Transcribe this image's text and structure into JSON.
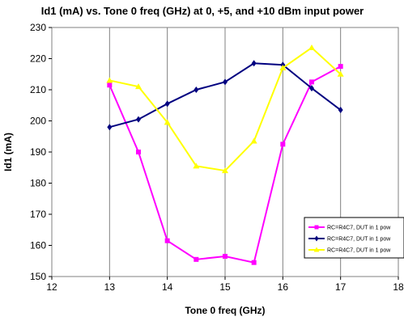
{
  "chart_data": {
    "type": "line",
    "title": "Id1 (mA) vs. Tone 0 freq (GHz) at 0, +5, and +10 dBm input power",
    "xlabel": "Tone 0 freq (GHz)",
    "ylabel": "Id1 (mA)",
    "xlim": [
      12,
      18
    ],
    "ylim": [
      150,
      230
    ],
    "xticks": [
      12,
      13,
      14,
      15,
      16,
      17,
      18
    ],
    "yticks": [
      150,
      160,
      170,
      180,
      190,
      200,
      210,
      220,
      230
    ],
    "grid": {
      "vertical": true,
      "horizontal": false
    },
    "legend_position": "bottom-right",
    "x": [
      13,
      13.5,
      14,
      14.5,
      15,
      15.5,
      16,
      16.5,
      17
    ],
    "series": [
      {
        "name": "RC=R4C7, DUT in 1 pow",
        "color": "#ff00ff",
        "marker": "square",
        "values": [
          211.5,
          190,
          161.5,
          155.5,
          156.5,
          154.5,
          192.5,
          212.5,
          217.5
        ]
      },
      {
        "name": "RC=R4C7, DUT in 1 pow",
        "color": "#000080",
        "marker": "diamond",
        "values": [
          198,
          200.5,
          205.5,
          210,
          212.5,
          218.5,
          218,
          210.5,
          203.5
        ]
      },
      {
        "name": "RC=R4C7, DUT in 1 pow",
        "color": "#ffff00",
        "marker": "triangle",
        "values": [
          213,
          211,
          199.5,
          185.5,
          184,
          193.5,
          217,
          223.5,
          215
        ]
      }
    ]
  }
}
